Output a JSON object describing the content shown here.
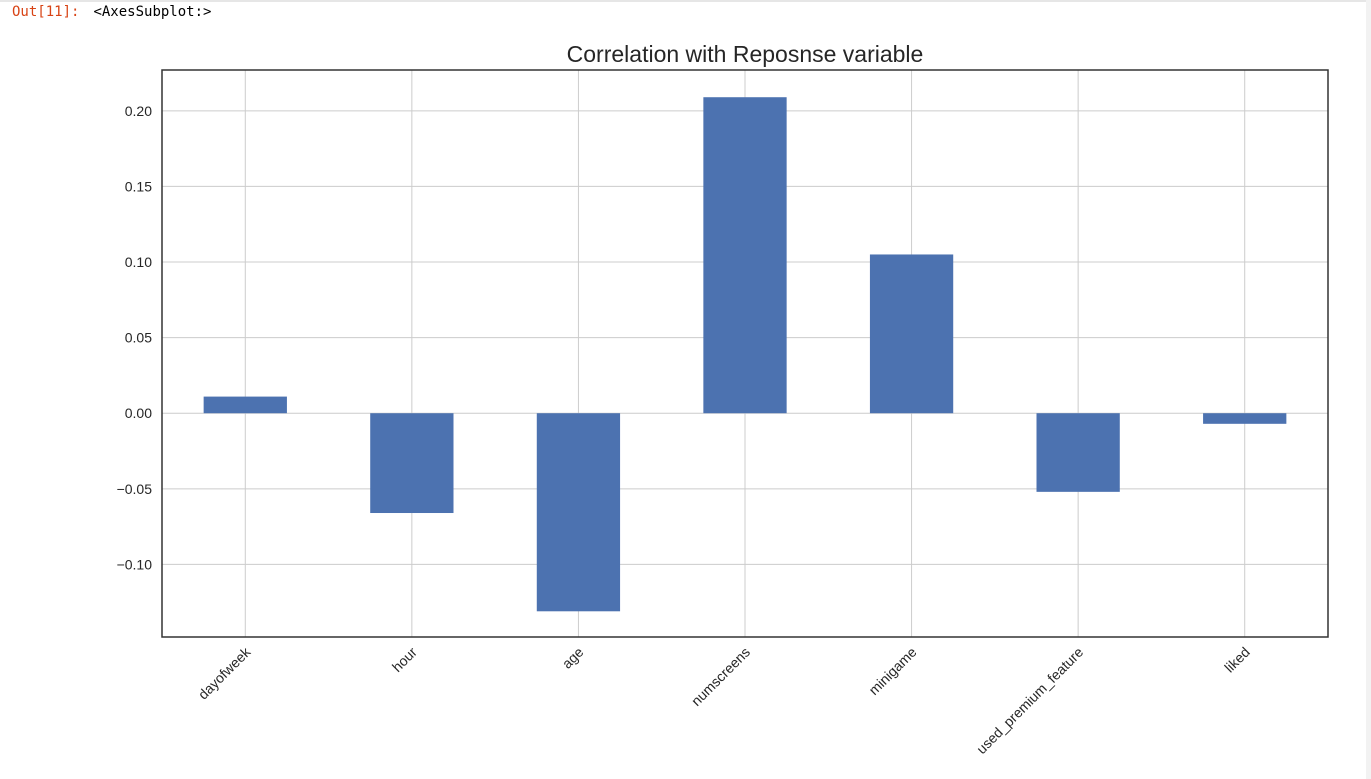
{
  "cell": {
    "prompt": "Out[11]:",
    "repr": "<AxesSubplot:>"
  },
  "colors": {
    "bar": "#4c72b0",
    "grid": "#cccccc",
    "axes_edge": "#333333",
    "prompt": "#d84315"
  },
  "chart_data": {
    "type": "bar",
    "title": "Correlation with Reposnse variable",
    "xlabel": "",
    "ylabel": "",
    "categories": [
      "dayofweek",
      "hour",
      "age",
      "numscreens",
      "minigame",
      "used_premium_feature",
      "liked"
    ],
    "values": [
      0.011,
      -0.066,
      -0.131,
      0.209,
      0.105,
      -0.052,
      -0.007
    ],
    "yticks": [
      -0.1,
      -0.05,
      0.0,
      0.05,
      0.1,
      0.15,
      0.2
    ],
    "ytick_labels": [
      "−0.10",
      "−0.05",
      "0.00",
      "0.05",
      "0.10",
      "0.15",
      "0.20"
    ],
    "ylim": [
      -0.148,
      0.227
    ],
    "grid": true,
    "legend": "none",
    "xtick_rotation": 45
  }
}
